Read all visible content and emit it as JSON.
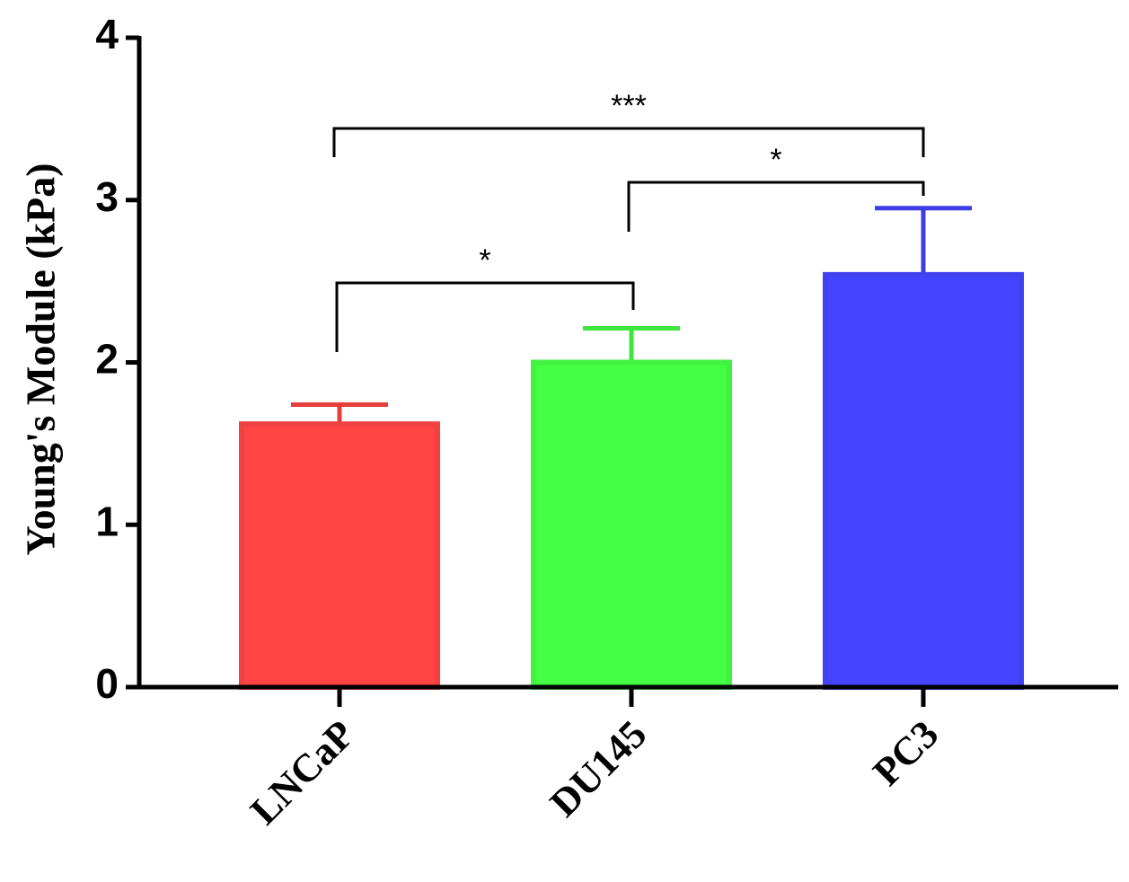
{
  "chart_data": {
    "type": "bar",
    "y_label": "Young's Module (kPa)",
    "categories": [
      "LNCaP",
      "DU145",
      "PC3"
    ],
    "values": [
      1.62,
      2.0,
      2.54
    ],
    "errors": [
      0.12,
      0.21,
      0.41
    ],
    "colors": [
      "#ff4444",
      "#44ff44",
      "#4444ff"
    ],
    "ylim": [
      0,
      4
    ],
    "yticks": [
      0,
      1,
      2,
      3,
      4
    ],
    "comparisons": [
      {
        "groups": [
          "LNCaP",
          "DU145"
        ],
        "label": "*"
      },
      {
        "groups": [
          "DU145",
          "PC3"
        ],
        "label": "*"
      },
      {
        "groups": [
          "LNCaP",
          "PC3"
        ],
        "label": "***"
      }
    ]
  }
}
